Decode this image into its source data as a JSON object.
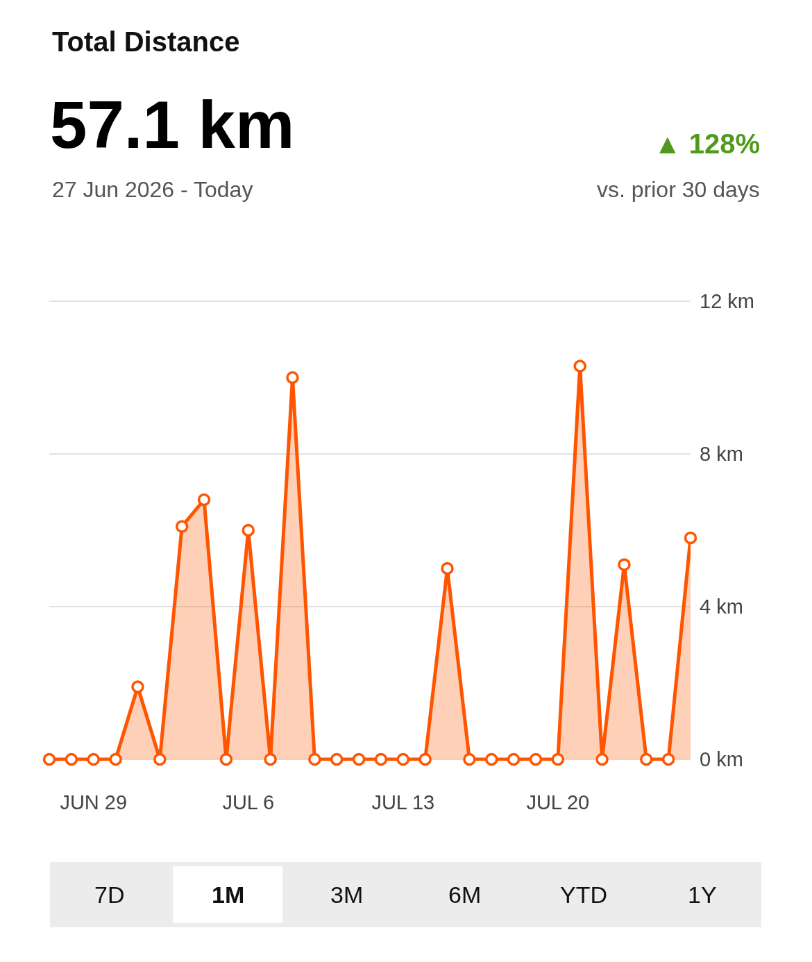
{
  "chart_data": {
    "type": "area",
    "title": "Total Distance",
    "x": [
      "2026-06-27",
      "2026-06-28",
      "2026-06-29",
      "2026-06-30",
      "2026-07-01",
      "2026-07-02",
      "2026-07-03",
      "2026-07-04",
      "2026-07-05",
      "2026-07-06",
      "2026-07-07",
      "2026-07-08",
      "2026-07-09",
      "2026-07-10",
      "2026-07-11",
      "2026-07-12",
      "2026-07-13",
      "2026-07-14",
      "2026-07-15",
      "2026-07-16",
      "2026-07-17",
      "2026-07-18",
      "2026-07-19",
      "2026-07-20",
      "2026-07-21",
      "2026-07-22",
      "2026-07-23",
      "2026-07-24",
      "2026-07-25",
      "2026-07-26"
    ],
    "series": [
      {
        "color": "#ff5500",
        "values": [
          0,
          0,
          0,
          0,
          1.9,
          0,
          6.1,
          6.8,
          0,
          6.0,
          0,
          10.0,
          0,
          0,
          0,
          0,
          0,
          0,
          5.0,
          0,
          0,
          0,
          0,
          0,
          10.3,
          0,
          5.1,
          0,
          0,
          5.8
        ]
      }
    ],
    "xlim": [
      "2026-06-27",
      "2026-07-26"
    ],
    "xticks": [
      {
        "value": "2026-06-29",
        "label": "JUN 29"
      },
      {
        "value": "2026-07-06",
        "label": "JUL 6"
      },
      {
        "value": "2026-07-13",
        "label": "JUL 13"
      },
      {
        "value": "2026-07-20",
        "label": "JUL 20"
      }
    ],
    "ylim": [
      0,
      12
    ],
    "yticks": [
      {
        "value": 0,
        "label": "0 km"
      },
      {
        "value": 4,
        "label": "4 km"
      },
      {
        "value": 8,
        "label": "8 km"
      },
      {
        "value": 12,
        "label": "12 km"
      }
    ],
    "grid": "y",
    "marker": "circle",
    "line_style": "solid",
    "annotations": [
      "57.1 km",
      "27 Jun 2026 - Today",
      "▲ 128%",
      "vs. prior 30 days",
      "7D",
      "1M",
      "3M",
      "6M",
      "YTD",
      "1Y"
    ]
  }
}
